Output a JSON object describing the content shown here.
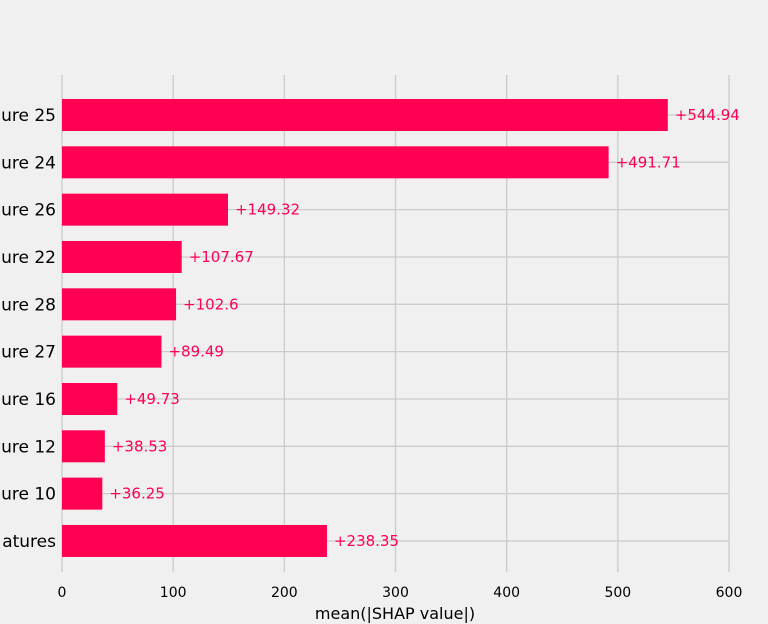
{
  "chart_data": {
    "type": "bar",
    "orientation": "horizontal",
    "categories": [
      "ure 25",
      "ure 24",
      "ure 26",
      "ure 22",
      "ure 28",
      "ure 27",
      "ure 16",
      "ure 12",
      "ure 10",
      "atures"
    ],
    "values": [
      544.94,
      491.71,
      149.32,
      107.67,
      102.6,
      89.49,
      49.73,
      38.53,
      36.25,
      238.35
    ],
    "data_labels": [
      "+544.94",
      "+491.71",
      "+149.32",
      "+107.67",
      "+102.6",
      "+89.49",
      "+49.73",
      "+38.53",
      "+36.25",
      "+238.35"
    ],
    "xlabel": "mean(|SHAP value|)",
    "ylabel": "",
    "xlim": [
      0,
      600
    ],
    "xticks": [
      0,
      100,
      200,
      300,
      400,
      500,
      600
    ],
    "xtick_labels": [
      "0",
      "100",
      "200",
      "300",
      "400",
      "500",
      "600"
    ],
    "grid": true,
    "colors": {
      "bar": "#ff0052",
      "label": "#ff0052",
      "grid": "#cbcbcb",
      "background": "#f0f0f0"
    }
  }
}
